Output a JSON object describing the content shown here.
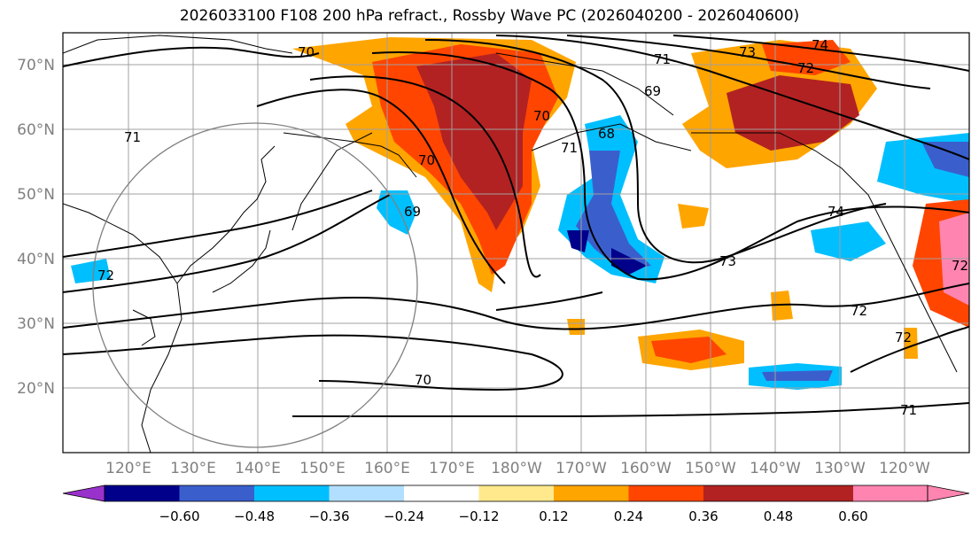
{
  "title": "2026033100 F108 200 hPa refract., Rossby Wave PC (2026040200 - 2026040600)",
  "lat_labels": [
    "70°N",
    "60°N",
    "50°N",
    "40°N",
    "30°N",
    "20°N"
  ],
  "lon_labels": [
    "120°E",
    "130°E",
    "140°E",
    "150°E",
    "160°E",
    "170°E",
    "180°W",
    "170°W",
    "160°W",
    "150°W",
    "140°W",
    "130°W",
    "120°W"
  ],
  "contour_labels": [
    "70",
    "71",
    "69",
    "73",
    "74",
    "72",
    "70",
    "68",
    "71",
    "70",
    "69",
    "74",
    "73",
    "72",
    "72",
    "71",
    "70",
    "71",
    "72",
    "72"
  ],
  "colorbar": {
    "colors": [
      "#9932cc",
      "#00008b",
      "#3a5fcd",
      "#00bfff",
      "#b2dfff",
      "#ffffff",
      "#ffe98c",
      "#ffa500",
      "#ff4500",
      "#b22222",
      "#ff85b0"
    ],
    "tick_labels": [
      "−0.60",
      "−0.48",
      "−0.36",
      "−0.24",
      "−0.12",
      "0.12",
      "0.24",
      "0.36",
      "0.48",
      "0.60"
    ]
  }
}
